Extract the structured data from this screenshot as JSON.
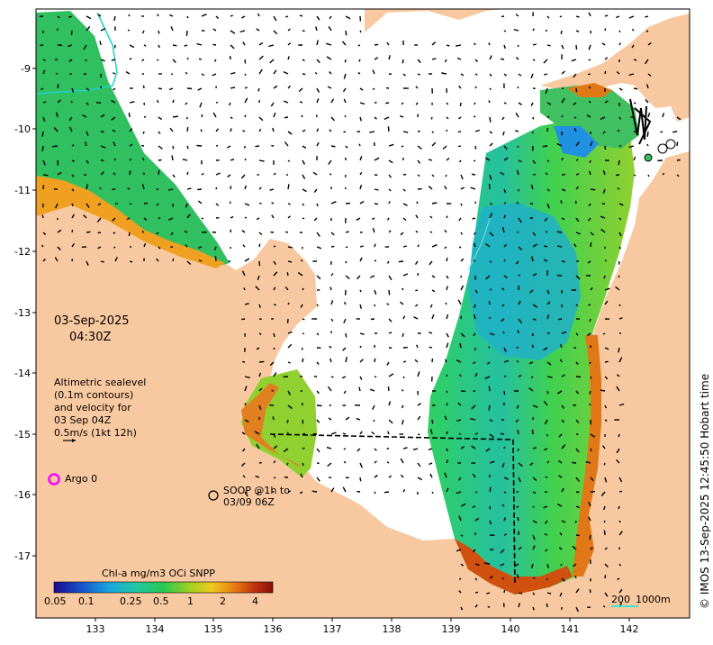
{
  "date_label": "03-Sep-2025",
  "time_label": "04:30Z",
  "legend": {
    "sealevel_line1": "Altimetric sealevel",
    "sealevel_line2": "(0.1m contours)",
    "sealevel_line3": "and velocity for",
    "sealevel_line4": "03 Sep 04Z",
    "scale_text": "0.5m/s (1kt 12h)",
    "argo_label": "Argo 0",
    "soop_line1": "SOOP @1h to",
    "soop_line2": "03/09 06Z"
  },
  "colorbar": {
    "title": "Chl-a mg/m3 OCi SNPP",
    "ticks": [
      "0.05",
      "0.1",
      "0.25",
      "0.5",
      "1",
      "2",
      "4"
    ]
  },
  "scalebar": {
    "label_a": "200",
    "label_b": "1000m"
  },
  "copyright": "© IMOS 13-Sep-2025 12:45:50 Hobart time",
  "axes": {
    "lat_ticks": [
      "-9",
      "-10",
      "-11",
      "-12",
      "-13",
      "-14",
      "-15",
      "-16",
      "-17"
    ],
    "lon_ticks": [
      "133",
      "134",
      "135",
      "136",
      "137",
      "138",
      "139",
      "140",
      "141",
      "142"
    ]
  },
  "colors": {
    "land": "#f8c9a0",
    "ocean": "#ffffff",
    "argo": "#ff00ff",
    "scale_line": "#40e0d0"
  }
}
